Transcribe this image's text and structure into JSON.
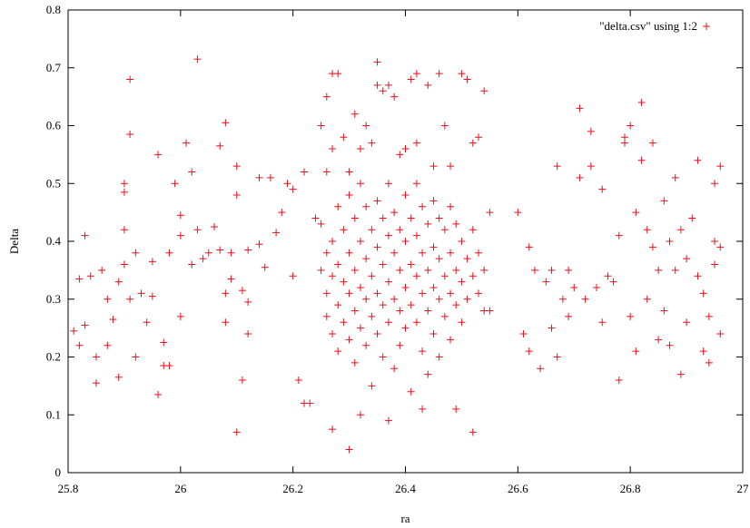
{
  "chart_data": {
    "type": "scatter",
    "xlabel": "ra",
    "ylabel": "Delta",
    "xlim": [
      25.8,
      27.0
    ],
    "ylim": [
      0,
      0.8
    ],
    "xticks": [
      25.8,
      26.0,
      26.2,
      26.4,
      26.6,
      26.8,
      27.0
    ],
    "xtick_labels": [
      "25.8",
      "26",
      "26.2",
      "26.4",
      "26.6",
      "26.8",
      "27"
    ],
    "yticks": [
      0,
      0.1,
      0.2,
      0.3,
      0.4,
      0.5,
      0.6,
      0.7,
      0.8
    ],
    "ytick_labels": [
      "0",
      "0.1",
      "0.2",
      "0.3",
      "0.4",
      "0.5",
      "0.6",
      "0.7",
      "0.8"
    ],
    "grid": false,
    "legend_position": "top-right",
    "marker": "+",
    "color": "#e8101a",
    "series": [
      {
        "name": "\"delta.csv\" using 1:2",
        "points": [
          [
            25.81,
            0.245
          ],
          [
            25.82,
            0.22
          ],
          [
            25.82,
            0.335
          ],
          [
            25.83,
            0.41
          ],
          [
            25.83,
            0.255
          ],
          [
            25.84,
            0.34
          ],
          [
            25.85,
            0.2
          ],
          [
            25.85,
            0.155
          ],
          [
            25.86,
            0.35
          ],
          [
            25.87,
            0.3
          ],
          [
            25.87,
            0.22
          ],
          [
            25.88,
            0.265
          ],
          [
            25.89,
            0.33
          ],
          [
            25.89,
            0.165
          ],
          [
            25.9,
            0.36
          ],
          [
            25.9,
            0.42
          ],
          [
            25.9,
            0.5
          ],
          [
            25.9,
            0.485
          ],
          [
            25.91,
            0.68
          ],
          [
            25.91,
            0.585
          ],
          [
            25.91,
            0.3
          ],
          [
            25.92,
            0.38
          ],
          [
            25.92,
            0.2
          ],
          [
            25.93,
            0.31
          ],
          [
            25.94,
            0.26
          ],
          [
            25.95,
            0.365
          ],
          [
            25.95,
            0.305
          ],
          [
            25.96,
            0.55
          ],
          [
            25.96,
            0.135
          ],
          [
            25.97,
            0.185
          ],
          [
            25.97,
            0.225
          ],
          [
            25.98,
            0.38
          ],
          [
            25.98,
            0.185
          ],
          [
            25.99,
            0.5
          ],
          [
            26.0,
            0.445
          ],
          [
            26.0,
            0.41
          ],
          [
            26.0,
            0.27
          ],
          [
            26.01,
            0.57
          ],
          [
            26.02,
            0.52
          ],
          [
            26.02,
            0.36
          ],
          [
            26.03,
            0.715
          ],
          [
            26.03,
            0.42
          ],
          [
            26.04,
            0.37
          ],
          [
            26.05,
            0.38
          ],
          [
            26.06,
            0.425
          ],
          [
            26.07,
            0.565
          ],
          [
            26.07,
            0.385
          ],
          [
            26.08,
            0.605
          ],
          [
            26.08,
            0.31
          ],
          [
            26.08,
            0.26
          ],
          [
            26.09,
            0.38
          ],
          [
            26.09,
            0.335
          ],
          [
            26.1,
            0.53
          ],
          [
            26.1,
            0.48
          ],
          [
            26.1,
            0.07
          ],
          [
            26.11,
            0.315
          ],
          [
            26.11,
            0.16
          ],
          [
            26.12,
            0.385
          ],
          [
            26.12,
            0.295
          ],
          [
            26.12,
            0.24
          ],
          [
            26.14,
            0.51
          ],
          [
            26.14,
            0.395
          ],
          [
            26.15,
            0.355
          ],
          [
            26.16,
            0.51
          ],
          [
            26.17,
            0.415
          ],
          [
            26.18,
            0.45
          ],
          [
            26.19,
            0.5
          ],
          [
            26.2,
            0.49
          ],
          [
            26.2,
            0.34
          ],
          [
            26.21,
            0.16
          ],
          [
            26.22,
            0.52
          ],
          [
            26.22,
            0.12
          ],
          [
            26.23,
            0.12
          ],
          [
            26.24,
            0.44
          ],
          [
            26.25,
            0.35
          ],
          [
            26.25,
            0.6
          ],
          [
            26.26,
            0.65
          ],
          [
            26.26,
            0.52
          ],
          [
            26.27,
            0.69
          ],
          [
            26.27,
            0.56
          ],
          [
            26.27,
            0.075
          ],
          [
            26.28,
            0.69
          ],
          [
            26.29,
            0.58
          ],
          [
            26.3,
            0.52
          ],
          [
            26.3,
            0.04
          ],
          [
            26.31,
            0.62
          ],
          [
            26.32,
            0.56
          ],
          [
            26.32,
            0.1
          ],
          [
            26.33,
            0.6
          ],
          [
            26.34,
            0.57
          ],
          [
            26.35,
            0.71
          ],
          [
            26.35,
            0.67
          ],
          [
            26.36,
            0.66
          ],
          [
            26.37,
            0.67
          ],
          [
            26.37,
            0.09
          ],
          [
            26.38,
            0.65
          ],
          [
            26.39,
            0.55
          ],
          [
            26.4,
            0.56
          ],
          [
            26.41,
            0.68
          ],
          [
            26.42,
            0.69
          ],
          [
            26.42,
            0.57
          ],
          [
            26.43,
            0.11
          ],
          [
            26.44,
            0.67
          ],
          [
            26.45,
            0.53
          ],
          [
            26.46,
            0.69
          ],
          [
            26.47,
            0.6
          ],
          [
            26.48,
            0.53
          ],
          [
            26.49,
            0.11
          ],
          [
            26.5,
            0.69
          ],
          [
            26.51,
            0.68
          ],
          [
            26.52,
            0.57
          ],
          [
            26.52,
            0.07
          ],
          [
            26.53,
            0.58
          ],
          [
            26.54,
            0.66
          ],
          [
            26.55,
            0.45
          ],
          [
            26.55,
            0.28
          ],
          [
            26.25,
            0.43
          ],
          [
            26.26,
            0.38
          ],
          [
            26.26,
            0.31
          ],
          [
            26.26,
            0.27
          ],
          [
            26.27,
            0.4
          ],
          [
            26.27,
            0.34
          ],
          [
            26.27,
            0.24
          ],
          [
            26.28,
            0.46
          ],
          [
            26.28,
            0.36
          ],
          [
            26.28,
            0.29
          ],
          [
            26.28,
            0.21
          ],
          [
            26.29,
            0.42
          ],
          [
            26.29,
            0.33
          ],
          [
            26.29,
            0.26
          ],
          [
            26.3,
            0.48
          ],
          [
            26.3,
            0.38
          ],
          [
            26.3,
            0.31
          ],
          [
            26.3,
            0.23
          ],
          [
            26.31,
            0.44
          ],
          [
            26.31,
            0.35
          ],
          [
            26.31,
            0.28
          ],
          [
            26.31,
            0.19
          ],
          [
            26.32,
            0.5
          ],
          [
            26.32,
            0.4
          ],
          [
            26.32,
            0.32
          ],
          [
            26.32,
            0.25
          ],
          [
            26.33,
            0.46
          ],
          [
            26.33,
            0.37
          ],
          [
            26.33,
            0.3
          ],
          [
            26.33,
            0.22
          ],
          [
            26.34,
            0.42
          ],
          [
            26.34,
            0.34
          ],
          [
            26.34,
            0.27
          ],
          [
            26.34,
            0.15
          ],
          [
            26.35,
            0.47
          ],
          [
            26.35,
            0.39
          ],
          [
            26.35,
            0.31
          ],
          [
            26.35,
            0.24
          ],
          [
            26.36,
            0.44
          ],
          [
            26.36,
            0.36
          ],
          [
            26.36,
            0.29
          ],
          [
            26.36,
            0.2
          ],
          [
            26.37,
            0.5
          ],
          [
            26.37,
            0.41
          ],
          [
            26.37,
            0.33
          ],
          [
            26.37,
            0.26
          ],
          [
            26.38,
            0.45
          ],
          [
            26.38,
            0.38
          ],
          [
            26.38,
            0.3
          ],
          [
            26.38,
            0.18
          ],
          [
            26.39,
            0.42
          ],
          [
            26.39,
            0.35
          ],
          [
            26.39,
            0.28
          ],
          [
            26.39,
            0.22
          ],
          [
            26.4,
            0.48
          ],
          [
            26.4,
            0.4
          ],
          [
            26.4,
            0.32
          ],
          [
            26.4,
            0.25
          ],
          [
            26.41,
            0.44
          ],
          [
            26.41,
            0.36
          ],
          [
            26.41,
            0.29
          ],
          [
            26.41,
            0.14
          ],
          [
            26.42,
            0.5
          ],
          [
            26.42,
            0.41
          ],
          [
            26.42,
            0.34
          ],
          [
            26.42,
            0.26
          ],
          [
            26.43,
            0.46
          ],
          [
            26.43,
            0.38
          ],
          [
            26.43,
            0.31
          ],
          [
            26.43,
            0.21
          ],
          [
            26.44,
            0.43
          ],
          [
            26.44,
            0.35
          ],
          [
            26.44,
            0.28
          ],
          [
            26.44,
            0.17
          ],
          [
            26.45,
            0.47
          ],
          [
            26.45,
            0.39
          ],
          [
            26.45,
            0.32
          ],
          [
            26.45,
            0.24
          ],
          [
            26.46,
            0.44
          ],
          [
            26.46,
            0.37
          ],
          [
            26.46,
            0.3
          ],
          [
            26.46,
            0.2
          ],
          [
            26.47,
            0.42
          ],
          [
            26.47,
            0.34
          ],
          [
            26.47,
            0.27
          ],
          [
            26.48,
            0.46
          ],
          [
            26.48,
            0.38
          ],
          [
            26.48,
            0.31
          ],
          [
            26.48,
            0.23
          ],
          [
            26.49,
            0.43
          ],
          [
            26.49,
            0.35
          ],
          [
            26.49,
            0.29
          ],
          [
            26.5,
            0.4
          ],
          [
            26.5,
            0.33
          ],
          [
            26.5,
            0.26
          ],
          [
            26.51,
            0.37
          ],
          [
            26.51,
            0.3
          ],
          [
            26.52,
            0.42
          ],
          [
            26.52,
            0.34
          ],
          [
            26.53,
            0.38
          ],
          [
            26.53,
            0.31
          ],
          [
            26.54,
            0.35
          ],
          [
            26.54,
            0.28
          ],
          [
            26.6,
            0.45
          ],
          [
            26.61,
            0.24
          ],
          [
            26.62,
            0.39
          ],
          [
            26.62,
            0.21
          ],
          [
            26.63,
            0.35
          ],
          [
            26.64,
            0.18
          ],
          [
            26.65,
            0.33
          ],
          [
            26.66,
            0.35
          ],
          [
            26.66,
            0.25
          ],
          [
            26.67,
            0.53
          ],
          [
            26.67,
            0.2
          ],
          [
            26.68,
            0.3
          ],
          [
            26.69,
            0.35
          ],
          [
            26.69,
            0.27
          ],
          [
            26.7,
            0.32
          ],
          [
            26.71,
            0.63
          ],
          [
            26.71,
            0.51
          ],
          [
            26.72,
            0.3
          ],
          [
            26.73,
            0.59
          ],
          [
            26.73,
            0.53
          ],
          [
            26.74,
            0.32
          ],
          [
            26.75,
            0.49
          ],
          [
            26.75,
            0.26
          ],
          [
            26.76,
            0.34
          ],
          [
            26.77,
            0.33
          ],
          [
            26.78,
            0.41
          ],
          [
            26.78,
            0.16
          ],
          [
            26.79,
            0.58
          ],
          [
            26.79,
            0.57
          ],
          [
            26.8,
            0.6
          ],
          [
            26.8,
            0.27
          ],
          [
            26.81,
            0.21
          ],
          [
            26.81,
            0.45
          ],
          [
            26.82,
            0.64
          ],
          [
            26.82,
            0.54
          ],
          [
            26.83,
            0.42
          ],
          [
            26.83,
            0.3
          ],
          [
            26.84,
            0.57
          ],
          [
            26.84,
            0.39
          ],
          [
            26.85,
            0.35
          ],
          [
            26.85,
            0.23
          ],
          [
            26.86,
            0.47
          ],
          [
            26.86,
            0.28
          ],
          [
            26.87,
            0.4
          ],
          [
            26.87,
            0.22
          ],
          [
            26.88,
            0.51
          ],
          [
            26.88,
            0.35
          ],
          [
            26.89,
            0.42
          ],
          [
            26.89,
            0.17
          ],
          [
            26.9,
            0.37
          ],
          [
            26.9,
            0.26
          ],
          [
            26.91,
            0.44
          ],
          [
            26.92,
            0.54
          ],
          [
            26.92,
            0.34
          ],
          [
            26.93,
            0.31
          ],
          [
            26.93,
            0.21
          ],
          [
            26.94,
            0.27
          ],
          [
            26.94,
            0.19
          ],
          [
            26.95,
            0.5
          ],
          [
            26.95,
            0.4
          ],
          [
            26.95,
            0.36
          ],
          [
            26.96,
            0.53
          ],
          [
            26.96,
            0.39
          ],
          [
            26.96,
            0.24
          ]
        ]
      }
    ]
  }
}
